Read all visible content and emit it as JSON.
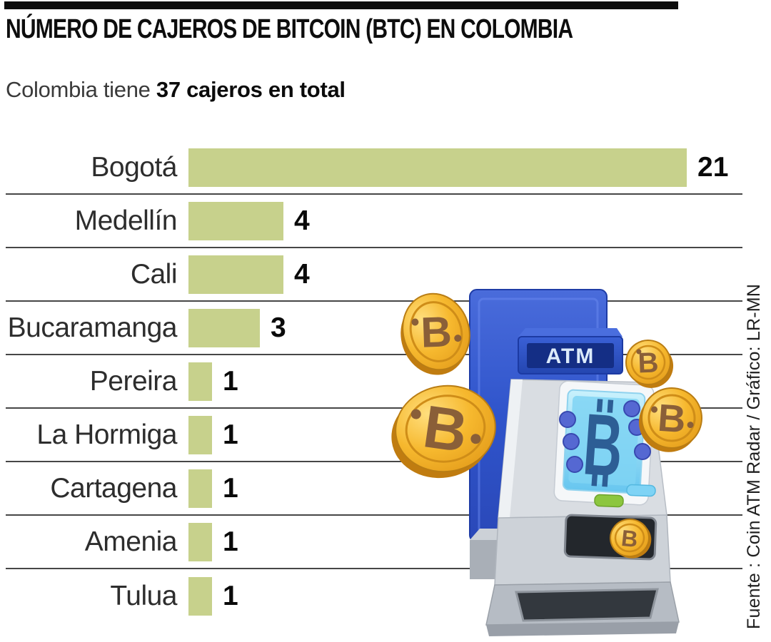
{
  "header": {
    "title": "NÚMERO DE CAJEROS DE BITCOIN (BTC) EN COLOMBIA",
    "subtitle_prefix": "Colombia tiene ",
    "subtitle_bold": "37 cajeros en total"
  },
  "chart_data": {
    "type": "bar",
    "orientation": "horizontal",
    "title": "Número de cajeros de Bitcoin (BTC) en Colombia",
    "categories": [
      "Bogotá",
      "Medellín",
      "Cali",
      "Bucaramanga",
      "Pereira",
      "La Hormiga",
      "Cartagena",
      "Amenia",
      "Tulua"
    ],
    "values": [
      21,
      4,
      4,
      3,
      1,
      1,
      1,
      1,
      1
    ],
    "total": 37,
    "xlim": [
      0,
      21
    ],
    "grid": "row dividers only, no axis",
    "legend": "none",
    "bar_color": "#c7d18c",
    "divider_color": "#474747",
    "value_labels": "bold, right of each bar"
  },
  "illustration": {
    "atm_label": "ATM",
    "bitcoin_glyph": "B",
    "colors": {
      "coin_gold": "#f3ac20",
      "coin_symbol_brown": "#8a5f38",
      "atm_sign_blue": "#2e53c8",
      "panel_blue": "#3a5cd2",
      "screen_cyan": "#7ed3f5",
      "screen_symbol_navy": "#2d5e95",
      "body_gray": "#d9dde2"
    }
  },
  "source": {
    "text": "Fuente : Coin ATM Radar / Gráfico: LR-MN"
  }
}
